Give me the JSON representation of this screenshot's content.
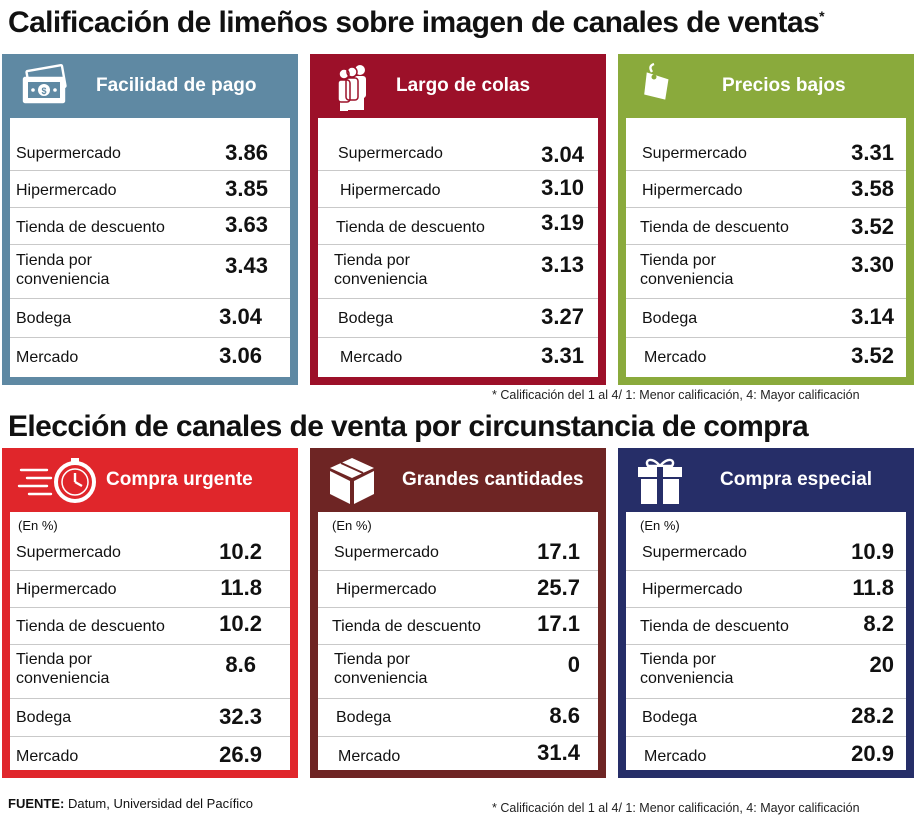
{
  "titles": {
    "top": "Calificación de limeños sobre imagen de canales de ventas",
    "top_mark": "*",
    "bottom": "Elección de canales de venta por circunstancia de compra"
  },
  "notes": {
    "top": "* Calificación del 1 al 4/ 1: Menor calificación, 4: Mayor calificación",
    "bottom": "* Calificación del 1 al 4/ 1: Menor calificación, 4: Mayor calificación"
  },
  "source": {
    "label": "FUENTE:",
    "text": " Datum, Universidad del Pacífico"
  },
  "colors": {
    "facilidad": "#5f89a3",
    "colas": "#9c1029",
    "precios": "#8aaa3c",
    "urgente": "#e0262b",
    "cantidades": "#6e2524",
    "especial": "#262e68"
  },
  "icons": {
    "facilidad": "money-bills-icon",
    "colas": "queue-people-icon",
    "precios": "price-tag-icon",
    "urgente": "fast-clock-icon",
    "cantidades": "box-icon",
    "especial": "gift-icon"
  },
  "chart_data": [
    {
      "type": "table",
      "title": "Facilidad de pago",
      "categories": [
        "Supermercado",
        "Hipermercado",
        "Tienda de descuento",
        "Tienda por conveniencia",
        "Bodega",
        "Mercado"
      ],
      "values": [
        "3.86",
        "3.85",
        "3.63",
        "3.43",
        "3.04",
        "3.06"
      ]
    },
    {
      "type": "table",
      "title": "Largo de colas",
      "categories": [
        "Supermercado",
        "Hipermercado",
        "Tienda de descuento",
        "Tienda por conveniencia",
        "Bodega",
        "Mercado"
      ],
      "values": [
        "3.04",
        "3.10",
        "3.19",
        "3.13",
        "3.27",
        "3.31"
      ]
    },
    {
      "type": "table",
      "title": "Precios bajos",
      "categories": [
        "Supermercado",
        "Hipermercado",
        "Tienda de descuento",
        "Tienda por conveniencia",
        "Bodega",
        "Mercado"
      ],
      "values": [
        "3.31",
        "3.58",
        "3.52",
        "3.30",
        "3.14",
        "3.52"
      ]
    },
    {
      "type": "table",
      "title": "Compra urgente",
      "unit": "(En %)",
      "categories": [
        "Supermercado",
        "Hipermercado",
        "Tienda de descuento",
        "Tienda por conveniencia",
        "Bodega",
        "Mercado"
      ],
      "values": [
        "10.2",
        "11.8",
        "10.2",
        "8.6",
        "32.3",
        "26.9"
      ]
    },
    {
      "type": "table",
      "title": "Grandes cantidades",
      "unit": "(En %)",
      "categories": [
        "Supermercado",
        "Hipermercado",
        "Tienda de descuento",
        "Tienda por conveniencia",
        "Bodega",
        "Mercado"
      ],
      "values": [
        "17.1",
        "25.7",
        "17.1",
        "0",
        "8.6",
        "31.4"
      ]
    },
    {
      "type": "table",
      "title": "Compra especial",
      "unit": "(En %)",
      "categories": [
        "Supermercado",
        "Hipermercado",
        "Tienda de descuento",
        "Tienda por conveniencia",
        "Bodega",
        "Mercado"
      ],
      "values": [
        "10.9",
        "11.8",
        "8.2",
        "20",
        "28.2",
        "20.9"
      ]
    }
  ]
}
